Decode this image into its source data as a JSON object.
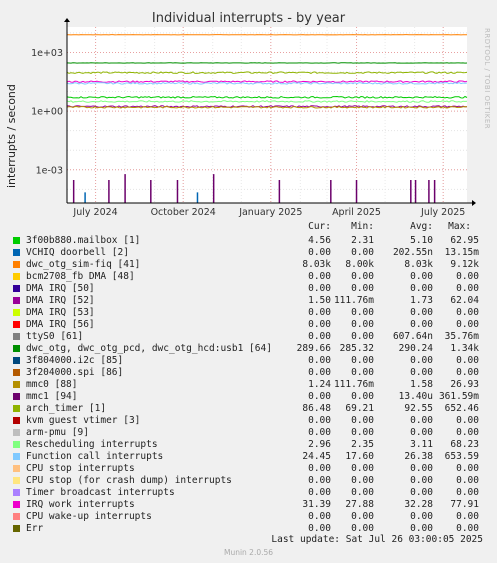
{
  "title": "Individual interrupts - by year",
  "watermark": "RRDTOOL / TOBI OETIKER",
  "footer": "Munin 2.0.56",
  "last_update": "Last update: Sat Jul 26 03:00:05 2025",
  "legend_headers": {
    "cur": "Cur:",
    "min": "Min:",
    "avg": "Avg:",
    "max": "Max:"
  },
  "legend": [
    {
      "name": "3f00b880.mailbox [1]",
      "color": "#00cc00",
      "cur": "4.56",
      "min": "2.31",
      "avg": "5.10",
      "max": "62.95"
    },
    {
      "name": "VCHIQ doorbell [2]",
      "color": "#0066b3",
      "cur": "0.00",
      "min": "0.00",
      "avg": "202.55n",
      "max": "13.15m"
    },
    {
      "name": "dwc_otg_sim-fiq [41]",
      "color": "#ff8000",
      "cur": "8.03k",
      "min": "8.00k",
      "avg": "8.03k",
      "max": "9.12k"
    },
    {
      "name": "bcm2708_fb DMA [48]",
      "color": "#ffcc00",
      "cur": "0.00",
      "min": "0.00",
      "avg": "0.00",
      "max": "0.00"
    },
    {
      "name": "DMA IRQ [50]",
      "color": "#330099",
      "cur": "0.00",
      "min": "0.00",
      "avg": "0.00",
      "max": "0.00"
    },
    {
      "name": "DMA IRQ [52]",
      "color": "#990099",
      "cur": "1.50",
      "min": "111.76m",
      "avg": "1.73",
      "max": "62.04"
    },
    {
      "name": "DMA IRQ [53]",
      "color": "#ccff00",
      "cur": "0.00",
      "min": "0.00",
      "avg": "0.00",
      "max": "0.00"
    },
    {
      "name": "DMA IRQ [56]",
      "color": "#ff0000",
      "cur": "0.00",
      "min": "0.00",
      "avg": "0.00",
      "max": "0.00"
    },
    {
      "name": "ttyS0 [61]",
      "color": "#808080",
      "cur": "0.00",
      "min": "0.00",
      "avg": "607.64n",
      "max": "35.76m"
    },
    {
      "name": "dwc_otg, dwc_otg_pcd, dwc_otg_hcd:usb1 [64]",
      "color": "#008f00",
      "cur": "289.66",
      "min": "285.32",
      "avg": "290.24",
      "max": "1.34k"
    },
    {
      "name": "3f804000.i2c [85]",
      "color": "#00487d",
      "cur": "0.00",
      "min": "0.00",
      "avg": "0.00",
      "max": "0.00"
    },
    {
      "name": "3f204000.spi [86]",
      "color": "#b35a00",
      "cur": "0.00",
      "min": "0.00",
      "avg": "0.00",
      "max": "0.00"
    },
    {
      "name": "mmc0 [88]",
      "color": "#b38f00",
      "cur": "1.24",
      "min": "111.76m",
      "avg": "1.58",
      "max": "26.93"
    },
    {
      "name": "mmc1 [94]",
      "color": "#6b006b",
      "cur": "0.00",
      "min": "0.00",
      "avg": "13.40u",
      "max": "361.59m"
    },
    {
      "name": "arch_timer [1]",
      "color": "#8fb300",
      "cur": "86.48",
      "min": "69.21",
      "avg": "92.55",
      "max": "652.46"
    },
    {
      "name": "kvm guest vtimer [3]",
      "color": "#b30000",
      "cur": "0.00",
      "min": "0.00",
      "avg": "0.00",
      "max": "0.00"
    },
    {
      "name": "arm-pmu [9]",
      "color": "#bebebe",
      "cur": "0.00",
      "min": "0.00",
      "avg": "0.00",
      "max": "0.00"
    },
    {
      "name": "Rescheduling interrupts",
      "color": "#80ff80",
      "cur": "2.96",
      "min": "2.35",
      "avg": "3.11",
      "max": "68.23"
    },
    {
      "name": "Function call interrupts",
      "color": "#80c9ff",
      "cur": "24.45",
      "min": "17.60",
      "avg": "26.38",
      "max": "653.59"
    },
    {
      "name": "CPU stop interrupts",
      "color": "#ffc080",
      "cur": "0.00",
      "min": "0.00",
      "avg": "0.00",
      "max": "0.00"
    },
    {
      "name": "CPU stop (for crash dump) interrupts",
      "color": "#ffe680",
      "cur": "0.00",
      "min": "0.00",
      "avg": "0.00",
      "max": "0.00"
    },
    {
      "name": "Timer broadcast interrupts",
      "color": "#aa80ff",
      "cur": "0.00",
      "min": "0.00",
      "avg": "0.00",
      "max": "0.00"
    },
    {
      "name": "IRQ work interrupts",
      "color": "#ee00cc",
      "cur": "31.39",
      "min": "27.88",
      "avg": "32.28",
      "max": "77.91"
    },
    {
      "name": "CPU wake-up interrupts",
      "color": "#ff8080",
      "cur": "0.00",
      "min": "0.00",
      "avg": "0.00",
      "max": "0.00"
    },
    {
      "name": "Err",
      "color": "#666600",
      "cur": "0.00",
      "min": "0.00",
      "avg": "0.00",
      "max": "0.00"
    }
  ],
  "chart_data": {
    "type": "line",
    "title": "Individual interrupts - by year",
    "ylabel": "interrupts / second",
    "y_scale": "log",
    "ylim": [
      2e-05,
      20000
    ],
    "y_ticks": [
      {
        "value": 1000,
        "label": "1e+03"
      },
      {
        "value": 1,
        "label": "1e+00"
      },
      {
        "value": 0.001,
        "label": "1e-03"
      }
    ],
    "x_range": [
      "2024-06-01",
      "2025-07-26"
    ],
    "x_ticks": [
      {
        "date": "2024-07-01",
        "label": "July 2024"
      },
      {
        "date": "2024-10-01",
        "label": "October 2024"
      },
      {
        "date": "2025-01-01",
        "label": "January 2025"
      },
      {
        "date": "2025-04-01",
        "label": "April 2025"
      },
      {
        "date": "2025-07-01",
        "label": "July 2025"
      }
    ],
    "grid": true,
    "series": [
      {
        "name": "dwc_otg_sim-fiq [41]",
        "color": "#ff8000",
        "level": 8030
      },
      {
        "name": "dwc_otg, dwc_otg_pcd, dwc_otg_hcd:usb1 [64]",
        "color": "#008f00",
        "level": 290.24
      },
      {
        "name": "arch_timer [1]",
        "color": "#8fb300",
        "level": 92.55
      },
      {
        "name": "IRQ work interrupts",
        "color": "#ee00cc",
        "level": 32.28
      },
      {
        "name": "Function call interrupts",
        "color": "#80c9ff",
        "level": 26.38
      },
      {
        "name": "3f00b880.mailbox [1]",
        "color": "#00cc00",
        "level": 5.1
      },
      {
        "name": "Rescheduling interrupts",
        "color": "#80ff80",
        "level": 3.11
      },
      {
        "name": "DMA IRQ [52]",
        "color": "#990099",
        "level": 1.73
      },
      {
        "name": "mmc0 [88]",
        "color": "#b38f00",
        "level": 1.58
      }
    ],
    "spikes": [
      {
        "date": "2024-06-08",
        "value": 0.0003,
        "color": "#6b006b"
      },
      {
        "date": "2024-06-20",
        "value": 7e-05,
        "color": "#0066b3"
      },
      {
        "date": "2024-07-15",
        "value": 0.0003,
        "color": "#6b006b"
      },
      {
        "date": "2024-08-01",
        "value": 0.0006,
        "color": "#6b006b"
      },
      {
        "date": "2024-08-28",
        "value": 0.0003,
        "color": "#6b006b"
      },
      {
        "date": "2024-09-25",
        "value": 0.0003,
        "color": "#6b006b"
      },
      {
        "date": "2024-10-16",
        "value": 7e-05,
        "color": "#0066b3"
      },
      {
        "date": "2024-11-02",
        "value": 0.0006,
        "color": "#6b006b"
      },
      {
        "date": "2025-01-10",
        "value": 0.0003,
        "color": "#6b006b"
      },
      {
        "date": "2025-03-05",
        "value": 0.0003,
        "color": "#6b006b"
      },
      {
        "date": "2025-04-01",
        "value": 0.0003,
        "color": "#6b006b"
      },
      {
        "date": "2025-05-28",
        "value": 0.0003,
        "color": "#6b006b"
      },
      {
        "date": "2025-06-02",
        "value": 0.0003,
        "color": "#6b006b"
      },
      {
        "date": "2025-06-16",
        "value": 0.0003,
        "color": "#6b006b"
      },
      {
        "date": "2025-06-22",
        "value": 0.0003,
        "color": "#6b006b"
      }
    ]
  }
}
